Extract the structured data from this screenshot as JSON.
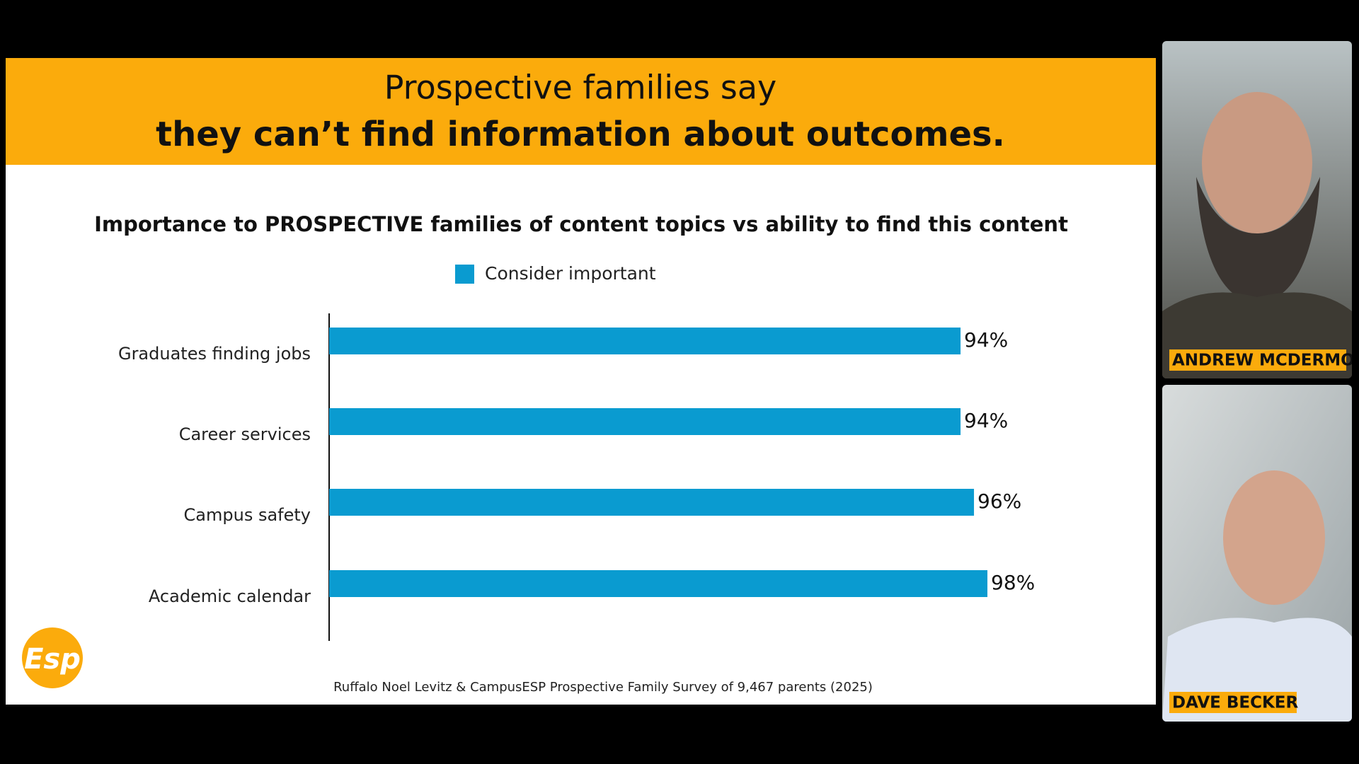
{
  "slide": {
    "title_line1": "Prospective families say",
    "title_line2": "they can’t find information about outcomes.",
    "source": "Ruffalo Noel Levitz & CampusESP Prospective Family Survey of 9,467 parents (2025)",
    "logo": "Esp"
  },
  "chart_data": {
    "type": "bar",
    "orientation": "horizontal",
    "title": "Importance to PROSPECTIVE families of content topics vs ability to find this content",
    "categories": [
      "Graduates finding jobs",
      "Career services",
      "Campus safety",
      "Academic calendar"
    ],
    "series": [
      {
        "name": "Consider important",
        "color": "#0a9bd0",
        "values": [
          94,
          94,
          96,
          98
        ],
        "value_labels": [
          "94%",
          "94%",
          "96%",
          "98%"
        ]
      }
    ],
    "xlim": [
      0,
      100
    ],
    "legend": "top"
  },
  "participants": [
    {
      "name": "ANDREW MCDERMO"
    },
    {
      "name": "DAVE BECKER"
    }
  ]
}
